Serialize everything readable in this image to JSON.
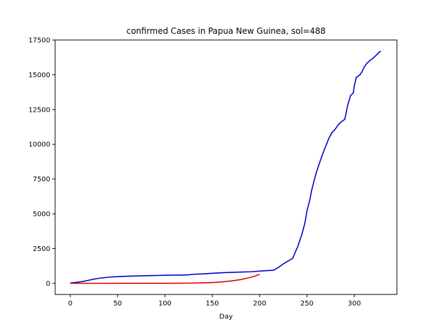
{
  "chart_data": {
    "type": "line",
    "title": "confirmed Cases in Papua New Guinea, sol=488",
    "xlabel": "Day",
    "ylabel": "",
    "xlim": [
      -16,
      345
    ],
    "ylim": [
      -800,
      17500
    ],
    "xticks": [
      0,
      50,
      100,
      150,
      200,
      250,
      300
    ],
    "yticks": [
      0,
      2500,
      5000,
      7500,
      10000,
      12500,
      15000,
      17500
    ],
    "grid": false,
    "series": [
      {
        "color": "#0000cc",
        "x": [
          0,
          5,
          10,
          15,
          20,
          25,
          30,
          40,
          50,
          60,
          70,
          80,
          90,
          100,
          110,
          120,
          125,
          130,
          140,
          150,
          160,
          170,
          180,
          190,
          200,
          205,
          210,
          215,
          220,
          225,
          230,
          235,
          238,
          240,
          242,
          245,
          248,
          250,
          253,
          255,
          258,
          260,
          263,
          266,
          270,
          273,
          276,
          280,
          283,
          286,
          290,
          293,
          296,
          299,
          300,
          302,
          304,
          306,
          308,
          310,
          313,
          316,
          320,
          323,
          326,
          328
        ],
        "y": [
          20,
          60,
          100,
          150,
          230,
          300,
          360,
          440,
          480,
          510,
          530,
          550,
          560,
          580,
          590,
          600,
          610,
          650,
          680,
          720,
          760,
          790,
          810,
          830,
          880,
          900,
          920,
          950,
          1150,
          1400,
          1600,
          1800,
          2300,
          2600,
          3000,
          3600,
          4400,
          5200,
          6000,
          6700,
          7500,
          8000,
          8600,
          9200,
          9900,
          10400,
          10800,
          11100,
          11400,
          11600,
          11800,
          12800,
          13500,
          13700,
          14200,
          14800,
          14900,
          15000,
          15200,
          15500,
          15800,
          16000,
          16200,
          16400,
          16600,
          16700
        ]
      },
      {
        "color": "#dd0000",
        "x": [
          0,
          20,
          40,
          60,
          80,
          100,
          120,
          130,
          140,
          150,
          160,
          170,
          180,
          190,
          195,
          200
        ],
        "y": [
          0,
          0,
          0,
          1,
          2,
          5,
          12,
          20,
          35,
          60,
          100,
          170,
          270,
          420,
          520,
          650
        ]
      }
    ]
  }
}
